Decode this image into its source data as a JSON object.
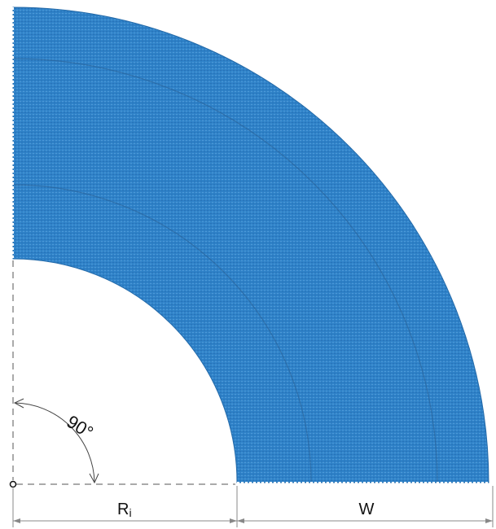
{
  "colors": {
    "belt_fill": "#2f82c8",
    "belt_texture": "#4e99d8",
    "belt_dark": "#2369a8",
    "guide_line": "#555555",
    "dimension_line": "#888888",
    "background": "#ffffff"
  },
  "labels": {
    "angle": "90°",
    "inner_radius": "R",
    "inner_radius_subscript": "i",
    "width": "W"
  }
}
